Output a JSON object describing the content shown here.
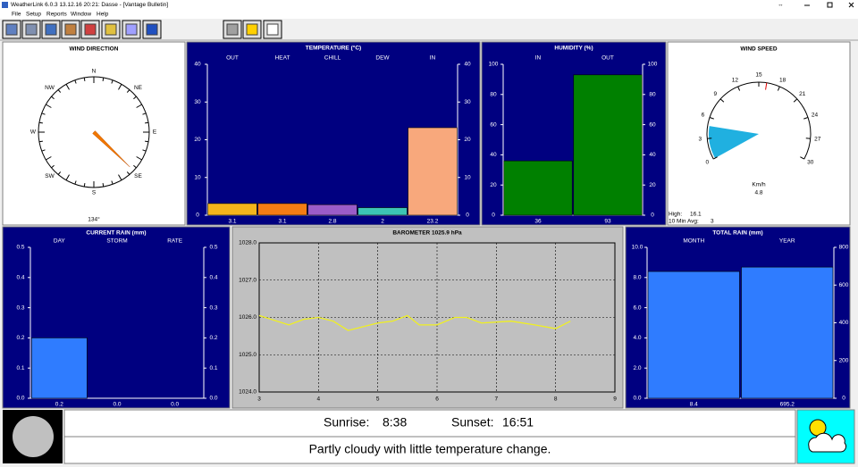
{
  "window_title": "WeatherLink 6.0.3  13.12.16  20:21: Dasse - [Vantage Bulletin]",
  "menu": [
    "File",
    "Setup",
    "Reports",
    "Window",
    "Help"
  ],
  "wind_direction": {
    "title": "WIND DIRECTION",
    "labels": [
      "N",
      "NE",
      "E",
      "SE",
      "S",
      "SW",
      "W",
      "NW"
    ],
    "value": 134,
    "value_label": "134°"
  },
  "temperature": {
    "title": "TEMPERATURE  (°C)",
    "categories": [
      "OUT",
      "HEAT",
      "CHILL",
      "DEW",
      "IN"
    ],
    "values": [
      3.1,
      3.1,
      2.8,
      2.0,
      23.2
    ],
    "colors": [
      "#f4b41c",
      "#f47c14",
      "#9a5cc8",
      "#3cc4b4",
      "#f8a87c"
    ],
    "ylim": [
      0,
      40
    ],
    "yticks": [
      0,
      10,
      20,
      30,
      40
    ]
  },
  "humidity": {
    "title": "HUMIDITY  (%)",
    "categories": [
      "IN",
      "OUT"
    ],
    "values": [
      36,
      93
    ],
    "colors": [
      "#008000",
      "#008000"
    ],
    "ylim": [
      0,
      100
    ],
    "yticks": [
      0,
      20,
      40,
      60,
      80,
      100
    ]
  },
  "wind_speed": {
    "title": "WIND SPEED",
    "unit": "Km/h",
    "value": 4.8,
    "lim": [
      0,
      30
    ],
    "ticks": [
      0,
      3,
      6,
      9,
      12,
      15,
      18,
      21,
      24,
      27,
      30
    ],
    "high_label": "High:",
    "high": 16.1,
    "avg_label": "10 Min Avg:",
    "avg": 3
  },
  "current_rain": {
    "title": "CURRENT RAIN  (mm)",
    "categories": [
      "DAY",
      "STORM",
      "RATE"
    ],
    "values": [
      0.2,
      0.0,
      0.0
    ],
    "value_labels": [
      "0.2",
      "0.0",
      "0.0"
    ],
    "colors": [
      "#2f7cff",
      "#2f7cff",
      "#2f7cff"
    ],
    "ylim": [
      0,
      0.5
    ],
    "yticks": [
      {
        "value": 0,
        "label": "0.0"
      },
      0.1,
      0.2,
      0.3,
      0.4,
      0.5
    ]
  },
  "barometer": {
    "title": "BAROMETER 1025.9 hPa",
    "x": [
      3.0,
      3.5,
      3.75,
      4.0,
      4.25,
      4.5,
      5.0,
      5.25,
      5.5,
      5.7,
      6.0,
      6.3,
      6.5,
      6.75,
      7.25,
      7.65,
      8.0,
      8.25
    ],
    "values": [
      1026.05,
      1025.8,
      1025.95,
      1026.0,
      1025.9,
      1025.65,
      1025.85,
      1025.9,
      1026.05,
      1025.8,
      1025.8,
      1026.0,
      1026.0,
      1025.85,
      1025.9,
      1025.8,
      1025.7,
      1025.9
    ],
    "color": "#f0f020",
    "xlim": [
      3,
      9
    ],
    "xticks": [
      3,
      4,
      5,
      6,
      7,
      8,
      9
    ],
    "ylim": [
      1024,
      1028
    ],
    "yticks": [
      {
        "value": 1024,
        "label": "1024.0"
      },
      {
        "value": 1025,
        "label": "1025.0"
      },
      {
        "value": 1026,
        "label": "1026.0"
      },
      {
        "value": 1027,
        "label": "1027.0"
      },
      {
        "value": 1028,
        "label": "1028.0"
      }
    ],
    "grid": true
  },
  "total_rain": {
    "title": "TOTAL RAIN  (mm)",
    "categories": [
      "MONTH",
      "YEAR"
    ],
    "values": [
      8.4,
      695.2
    ],
    "axes": [
      "y",
      "y2"
    ],
    "colors": [
      "#2f7cff",
      "#2f7cff"
    ],
    "ylim": [
      0,
      10
    ],
    "yticks": [
      {
        "value": 0,
        "label": "0.0"
      },
      {
        "value": 2,
        "label": "2.0"
      },
      {
        "value": 4,
        "label": "4.0"
      },
      {
        "value": 6,
        "label": "6.0"
      },
      {
        "value": 8,
        "label": "8.0"
      },
      {
        "value": 10,
        "label": "10.0"
      }
    ],
    "y2lim": [
      0,
      800
    ],
    "y2ticks": [
      0,
      200,
      400,
      600,
      800
    ]
  },
  "sunrise_label": "Sunrise:",
  "sunrise": "8:38",
  "sunset_label": "Sunset:",
  "sunset": "16:51",
  "forecast": "Partly cloudy with little temperature change."
}
